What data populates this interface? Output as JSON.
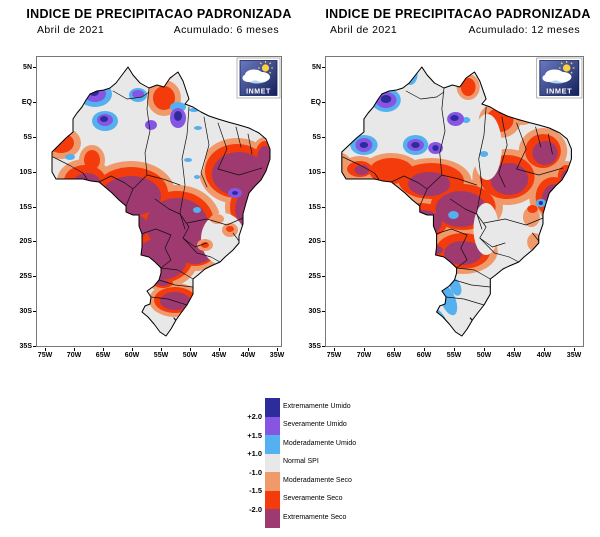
{
  "palette": {
    "exwet": "#2e2b9d",
    "sevwet": "#8655e2",
    "modwet": "#54b0ee",
    "normal": "#e8e8e8",
    "moddry": "#f09a6c",
    "sevdry": "#f43b0c",
    "exdry": "#9e3a6f",
    "frame": "#777777",
    "logo_blue_top": "#6a7ac0",
    "logo_blue_bottom": "#14205a",
    "sun_yellow": "#ffd23d"
  },
  "maps": [
    {
      "title": "INDICE DE PRECIPITACAO PADRONIZADA",
      "period": "Abril de 2021",
      "accumulation": "Acumulado: 6 meses"
    },
    {
      "title": "INDICE DE PRECIPITACAO PADRONIZADA",
      "period": "Abril de 2021",
      "accumulation": "Acumulado: 12 meses"
    }
  ],
  "axes": {
    "lat": [
      "5N",
      "EQ",
      "5S",
      "10S",
      "15S",
      "20S",
      "25S",
      "30S",
      "35S"
    ],
    "lon": [
      "75W",
      "70W",
      "65W",
      "60W",
      "55W",
      "50W",
      "45W",
      "40W",
      "35W"
    ]
  },
  "legend": {
    "ticks": [
      "+2.0",
      "+1.5",
      "+1.0",
      "-1.0",
      "-1.5",
      "-2.0"
    ],
    "categories": [
      {
        "label": "Extremamente Umido",
        "color": "exwet"
      },
      {
        "label": "Severamente Umido",
        "color": "sevwet"
      },
      {
        "label": "Moderadamente Umido",
        "color": "modwet"
      },
      {
        "label": "Normal SPI",
        "color": "normal"
      },
      {
        "label": "Moderadamente Seco",
        "color": "moddry"
      },
      {
        "label": "Severamente Seco",
        "color": "sevdry"
      },
      {
        "label": "Extremamente Seco",
        "color": "exdry"
      }
    ]
  },
  "logo": {
    "text": "INMET"
  }
}
